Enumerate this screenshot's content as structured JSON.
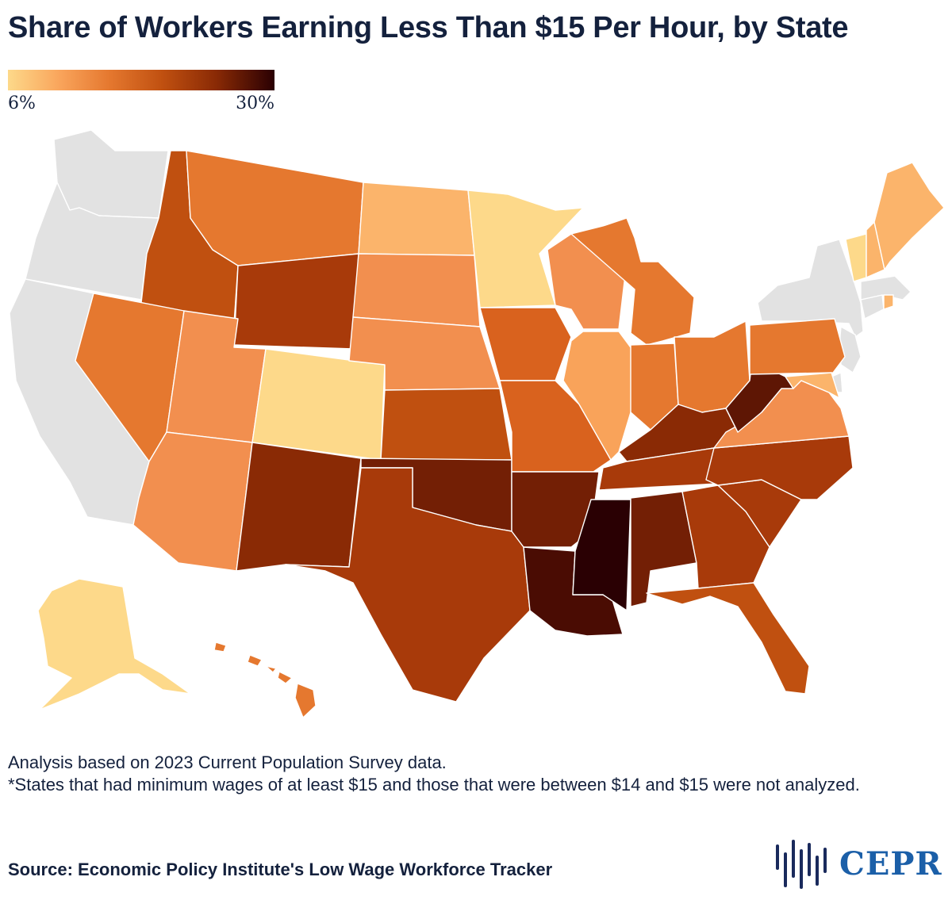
{
  "title": "Share of Workers Earning Less Than $15 Per Hour, by State",
  "legend": {
    "min_label": "6%",
    "max_label": "30%",
    "min_value": 6,
    "max_value": 30
  },
  "colors": {
    "not_analyzed": "#e2e2e2",
    "scale": [
      "#fdd98a",
      "#f9a35a",
      "#e5782f",
      "#c05010",
      "#8a2a05",
      "#2a0003"
    ],
    "logo": "#1b5fa8",
    "text": "#14213d"
  },
  "notes": {
    "line1": "Analysis based on 2023 Current Population Survey data.",
    "line2": "*States that had minimum wages of at least $15 and those that were between $14 and $15 were not analyzed."
  },
  "source": "Source: Economic Policy Institute's Low Wage Workforce Tracker",
  "logo": {
    "text": "CEPR",
    "icon": "cepr-bars-icon"
  }
}
